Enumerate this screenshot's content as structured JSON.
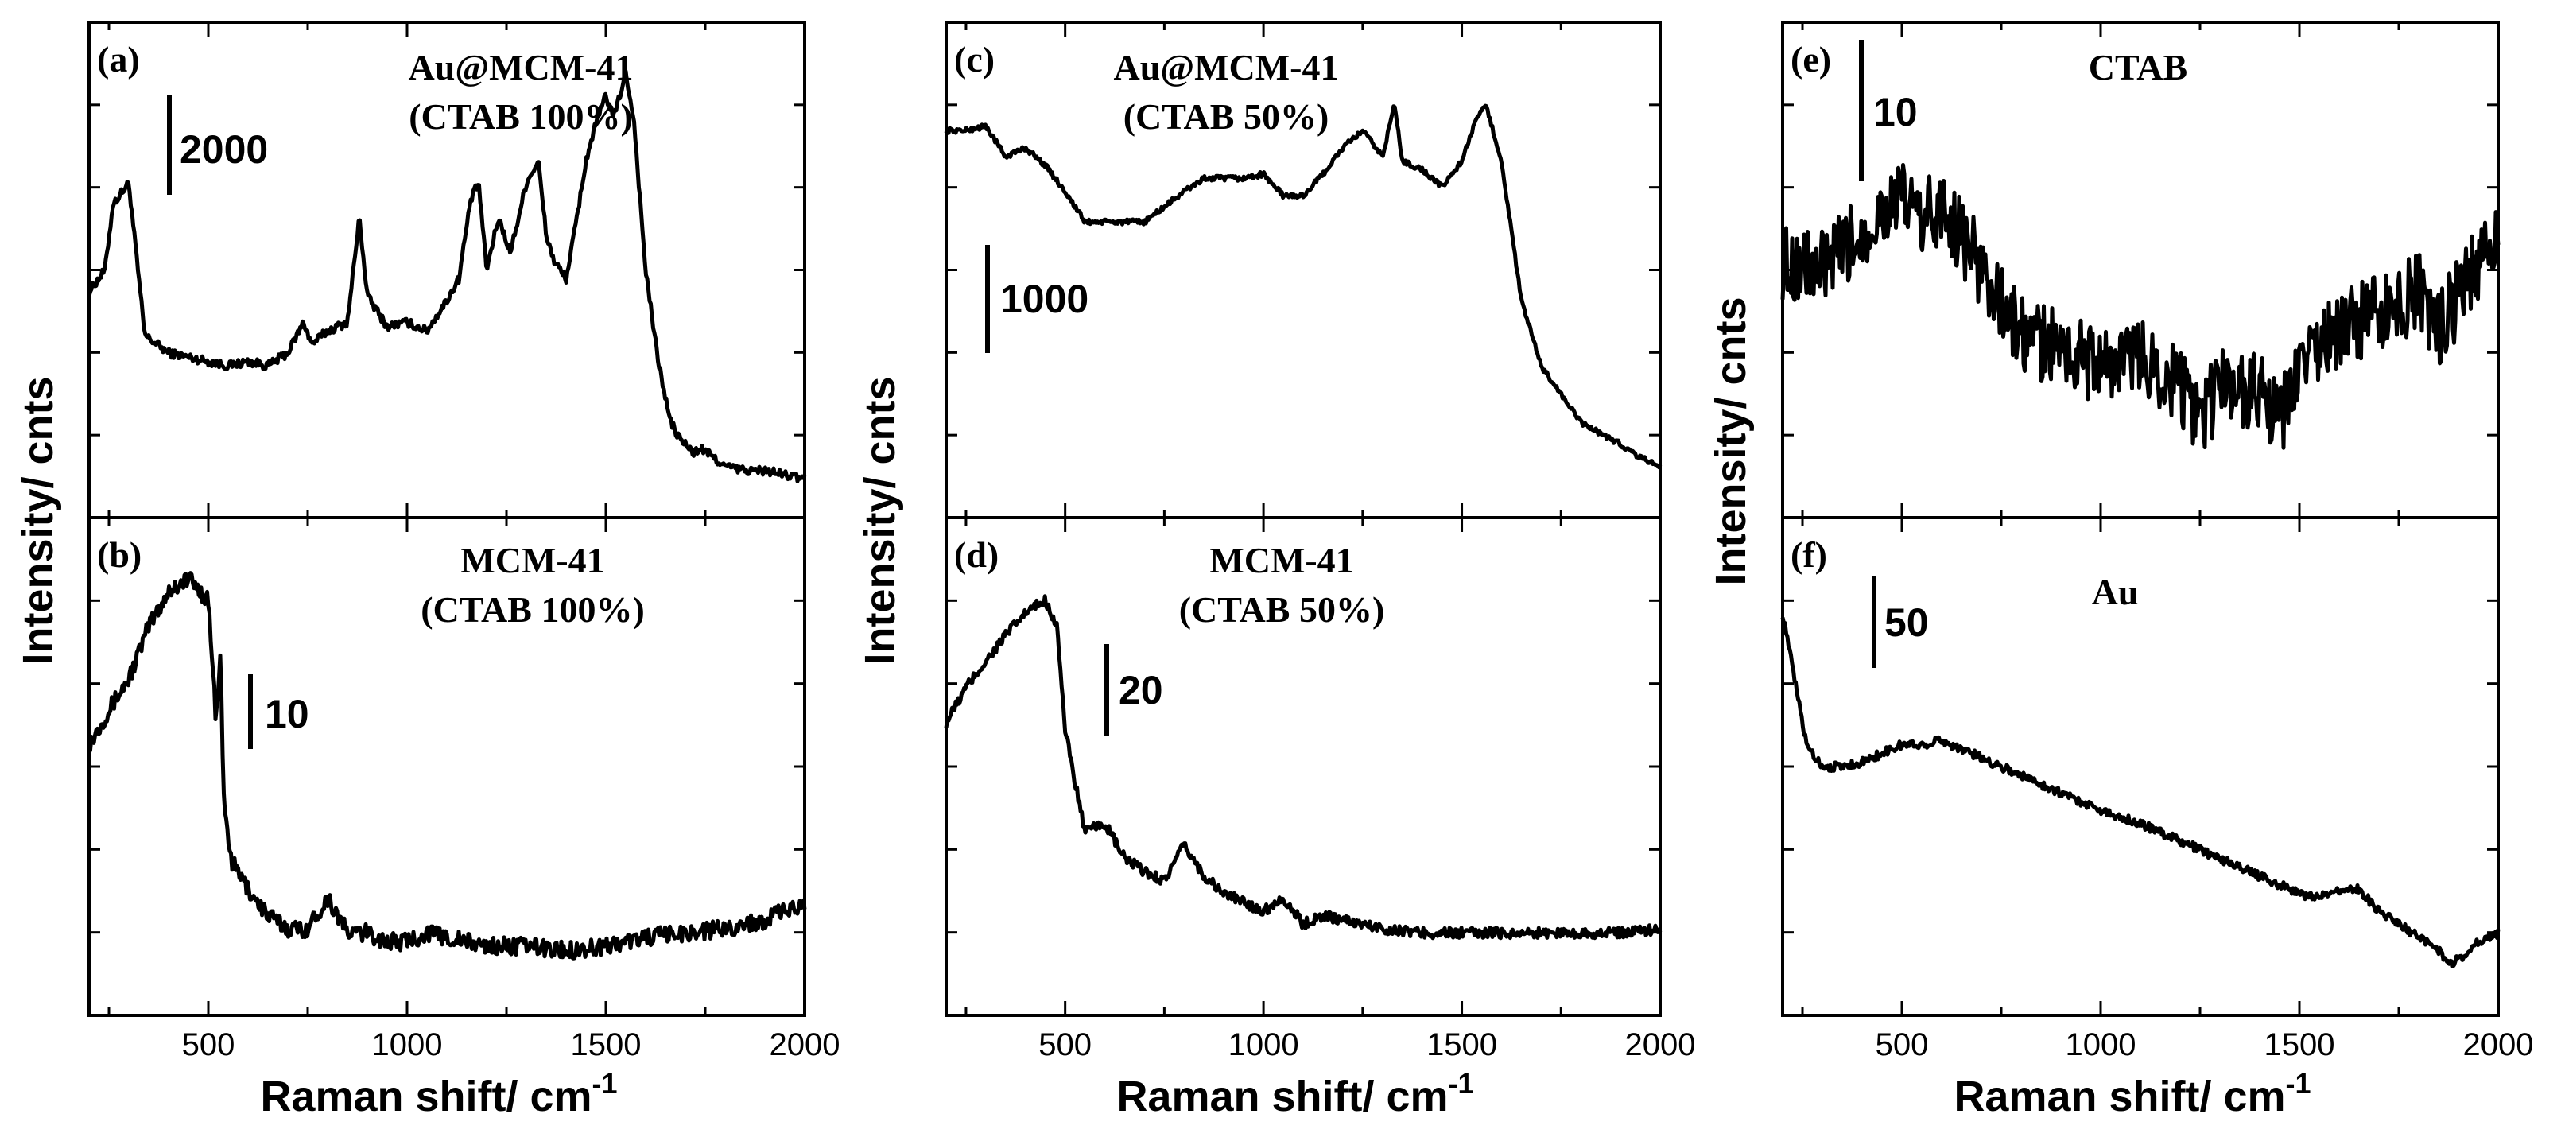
{
  "chart_data": [
    {
      "id": "a",
      "type": "line",
      "label": "(a)",
      "title_lines": [
        "Au@MCM-41",
        "(CTAB 100%)"
      ],
      "scale_bar": "2000",
      "xlim": [
        200,
        2000
      ],
      "ylim": [
        0,
        100
      ],
      "xticks": [],
      "x": [
        200,
        240,
        260,
        300,
        340,
        370,
        400,
        450,
        500,
        550,
        600,
        650,
        700,
        740,
        760,
        800,
        850,
        880,
        900,
        950,
        1000,
        1050,
        1100,
        1130,
        1160,
        1180,
        1200,
        1230,
        1260,
        1300,
        1330,
        1350,
        1370,
        1400,
        1420,
        1450,
        1470,
        1500,
        1520,
        1550,
        1570,
        1600,
        1630,
        1660,
        1680,
        1700,
        1720,
        1740,
        1800,
        1850,
        1900,
        1950,
        2000
      ],
      "values": [
        45,
        50,
        65,
        70,
        35,
        33,
        31,
        30,
        29,
        28,
        29,
        28,
        31,
        38,
        33,
        36,
        38,
        62,
        44,
        37,
        38,
        36,
        43,
        48,
        66,
        70,
        50,
        62,
        54,
        70,
        75,
        58,
        52,
        48,
        58,
        75,
        82,
        90,
        85,
        95,
        85,
        50,
        30,
        16,
        12,
        10,
        8,
        9,
        5,
        4,
        4,
        3,
        2
      ],
      "noise": 1.0
    },
    {
      "id": "b",
      "type": "line",
      "label": "(b)",
      "title_lines": [
        "MCM-41",
        "(CTAB 100%)"
      ],
      "scale_bar": "10",
      "xlim": [
        200,
        2000
      ],
      "ylim": [
        0,
        100
      ],
      "xticks": [
        "500",
        "1000",
        "1500",
        "2000"
      ],
      "xlabel": "Raman shift/ cm",
      "xlabel_sup": "-1",
      "x": [
        200,
        250,
        300,
        350,
        400,
        450,
        500,
        520,
        530,
        540,
        560,
        600,
        650,
        700,
        750,
        800,
        820,
        850,
        900,
        950,
        1000,
        1050,
        1100,
        1150,
        1200,
        1300,
        1400,
        1500,
        1600,
        1700,
        1800,
        1900,
        1950,
        2000
      ],
      "values": [
        55,
        63,
        70,
        82,
        90,
        93,
        88,
        60,
        75,
        40,
        28,
        22,
        16,
        13,
        13,
        20,
        17,
        12,
        12,
        10,
        10,
        12,
        11,
        10,
        9,
        9,
        8,
        9,
        11,
        12,
        13,
        15,
        17,
        18
      ],
      "noise": 2.0
    },
    {
      "id": "c",
      "type": "line",
      "label": "(c)",
      "title_lines": [
        "Au@MCM-41",
        "(CTAB 50%)"
      ],
      "scale_bar": "1000",
      "xlim": [
        200,
        2000
      ],
      "ylim": [
        0,
        100
      ],
      "xticks": [],
      "x": [
        200,
        250,
        300,
        350,
        400,
        450,
        500,
        550,
        600,
        700,
        800,
        850,
        900,
        950,
        1000,
        1050,
        1100,
        1150,
        1200,
        1250,
        1300,
        1330,
        1350,
        1400,
        1450,
        1500,
        1530,
        1560,
        1600,
        1650,
        1700,
        1800,
        1900,
        1950,
        2000
      ],
      "values": [
        82,
        82,
        83,
        76,
        78,
        74,
        68,
        61,
        61,
        61,
        68,
        71,
        71,
        71,
        72,
        67,
        67,
        72,
        78,
        82,
        76,
        88,
        75,
        73,
        69,
        75,
        83,
        88,
        75,
        43,
        28,
        15,
        10,
        7,
        5
      ],
      "noise": 0.6
    },
    {
      "id": "d",
      "type": "line",
      "label": "(d)",
      "title_lines": [
        "MCM-41",
        "(CTAB 50%)"
      ],
      "scale_bar": "20",
      "xlim": [
        200,
        2000
      ],
      "ylim": [
        0,
        100
      ],
      "xticks": [
        "500",
        "1000",
        "1500",
        "2000"
      ],
      "xlabel": "Raman shift/ cm",
      "xlabel_sup": "-1",
      "x": [
        200,
        250,
        300,
        350,
        400,
        450,
        480,
        500,
        550,
        600,
        650,
        700,
        750,
        800,
        850,
        900,
        1000,
        1050,
        1100,
        1150,
        1200,
        1300,
        1400,
        1500,
        1600,
        1700,
        1800,
        1900,
        2000
      ],
      "values": [
        60,
        68,
        74,
        80,
        85,
        88,
        82,
        58,
        35,
        37,
        29,
        26,
        24,
        32,
        25,
        21,
        17,
        20,
        14,
        16,
        15,
        13,
        12,
        12,
        12,
        12,
        12,
        12,
        13
      ],
      "noise": 1.2
    },
    {
      "id": "e",
      "type": "line",
      "label": "(e)",
      "title_lines": [
        "CTAB"
      ],
      "scale_bar": "10",
      "xlim": [
        200,
        2000
      ],
      "ylim": [
        0,
        100
      ],
      "xticks": [],
      "x": [
        200,
        300,
        400,
        450,
        500,
        550,
        600,
        650,
        700,
        750,
        800,
        900,
        1000,
        1100,
        1200,
        1250,
        1300,
        1400,
        1450,
        1500,
        1600,
        1700,
        1800,
        1850,
        1900,
        1950,
        2000
      ],
      "values": [
        52,
        50,
        58,
        64,
        66,
        62,
        64,
        58,
        50,
        42,
        35,
        32,
        28,
        30,
        24,
        14,
        24,
        22,
        14,
        28,
        36,
        40,
        45,
        36,
        44,
        52,
        55
      ],
      "noise": 9.0
    },
    {
      "id": "f",
      "type": "line",
      "label": "(f)",
      "title_lines": [
        "Au"
      ],
      "scale_bar": "50",
      "xlim": [
        200,
        2000
      ],
      "ylim": [
        0,
        100
      ],
      "xticks": [
        "500",
        "1000",
        "1500",
        "2000"
      ],
      "xlabel": "Raman shift/ cm",
      "xlabel_sup": "-1",
      "x": [
        200,
        230,
        260,
        300,
        350,
        400,
        450,
        500,
        550,
        600,
        650,
        700,
        800,
        900,
        1000,
        1100,
        1200,
        1300,
        1400,
        1500,
        1550,
        1600,
        1650,
        1700,
        1750,
        1800,
        1850,
        1880,
        1900,
        1950,
        2000
      ],
      "values": [
        85,
        70,
        55,
        50,
        50,
        51,
        53,
        55,
        55,
        56,
        54,
        52,
        48,
        44,
        40,
        37,
        33,
        29,
        25,
        21,
        20,
        22,
        22,
        17,
        14,
        11,
        8,
        5,
        6,
        10,
        12
      ],
      "noise": 1.0
    }
  ],
  "ylabel": "Intensity/ cnts"
}
